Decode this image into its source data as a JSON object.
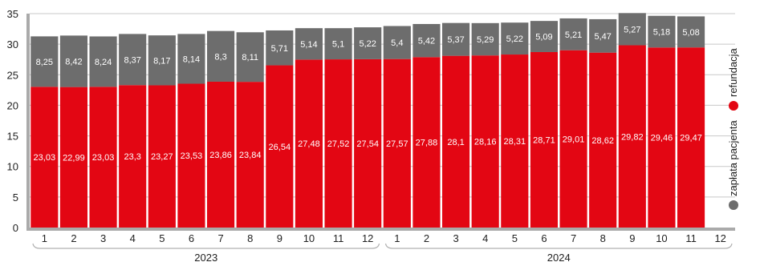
{
  "chart_data": {
    "type": "bar",
    "stacked": true,
    "categories": [
      "1",
      "2",
      "3",
      "4",
      "5",
      "6",
      "7",
      "8",
      "9",
      "10",
      "11",
      "12",
      "1",
      "2",
      "3",
      "4",
      "5",
      "6",
      "7",
      "8",
      "9",
      "10",
      "11",
      "12"
    ],
    "groups": [
      {
        "label": "2023",
        "months": 12
      },
      {
        "label": "2024",
        "months": 12
      }
    ],
    "series": [
      {
        "name": "refundacja",
        "color": "#e30613",
        "values": [
          23.03,
          22.99,
          23.03,
          23.3,
          23.27,
          23.53,
          23.86,
          23.84,
          26.54,
          27.48,
          27.52,
          27.54,
          27.57,
          27.88,
          28.1,
          28.16,
          28.31,
          28.71,
          29.01,
          28.62,
          29.82,
          29.46,
          29.47,
          null
        ],
        "labels": [
          "23,03",
          "22,99",
          "23,03",
          "23,3",
          "23,27",
          "23,53",
          "23,86",
          "23,84",
          "26,54",
          "27,48",
          "27,52",
          "27,54",
          "27,57",
          "27,88",
          "28,1",
          "28,16",
          "28,31",
          "28,71",
          "29,01",
          "28,62",
          "29,82",
          "29,46",
          "29,47",
          ""
        ]
      },
      {
        "name": "zapłata pacjenta",
        "color": "#6d6d6d",
        "values": [
          8.25,
          8.42,
          8.24,
          8.37,
          8.17,
          8.14,
          8.3,
          8.11,
          5.71,
          5.14,
          5.1,
          5.22,
          5.4,
          5.42,
          5.37,
          5.29,
          5.22,
          5.09,
          5.21,
          5.47,
          5.27,
          5.18,
          5.08,
          null
        ],
        "labels": [
          "8,25",
          "8,42",
          "8,24",
          "8,37",
          "8,17",
          "8,14",
          "8,3",
          "8,11",
          "5,71",
          "5,14",
          "5,1",
          "5,22",
          "5,4",
          "5,42",
          "5,37",
          "5,29",
          "5,22",
          "5,09",
          "5,21",
          "5,47",
          "5,27",
          "5,18",
          "5,08",
          ""
        ]
      }
    ],
    "yticks": [
      0,
      5,
      10,
      15,
      20,
      25,
      30,
      35
    ],
    "ylim": [
      0,
      35
    ],
    "grid": true,
    "legend_position": "right, vertical"
  },
  "colors": {
    "axis": "#aaaaaa",
    "grid": "#c8c8c8",
    "group_bracket": "#b0b0b0"
  }
}
